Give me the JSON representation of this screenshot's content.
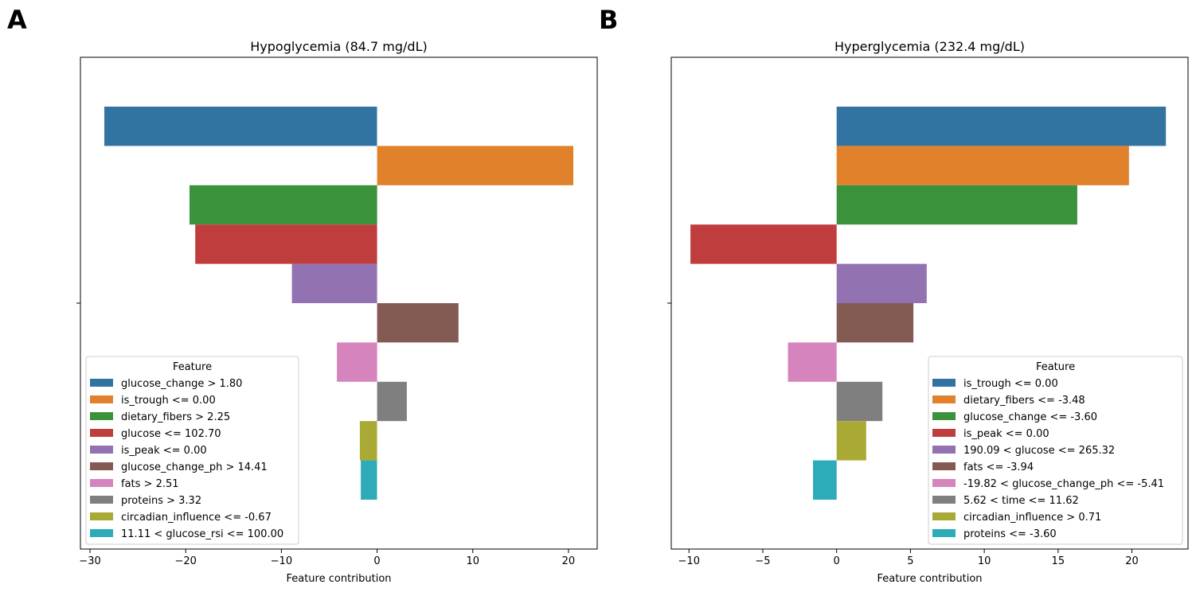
{
  "panels": [
    {
      "letter": "A"
    },
    {
      "letter": "B"
    }
  ],
  "chart_data": [
    {
      "type": "bar",
      "orientation": "horizontal",
      "title": "Hypoglycemia (84.7 mg/dL)",
      "xlabel": "Feature contribution",
      "ylabel": "",
      "xlim": [
        -31,
        23
      ],
      "xticks": [
        -30,
        -20,
        -10,
        0,
        10,
        20
      ],
      "grid": false,
      "legend_title": "Feature",
      "legend_position": "lower-left",
      "series": [
        {
          "name": "glucose_change > 1.80",
          "value": -28.5,
          "color": "#3274a1"
        },
        {
          "name": "is_trough <= 0.00",
          "value": 20.5,
          "color": "#e1812c"
        },
        {
          "name": "dietary_fibers > 2.25",
          "value": -19.6,
          "color": "#3a923a"
        },
        {
          "name": "glucose <= 102.70",
          "value": -19.0,
          "color": "#c03d3e"
        },
        {
          "name": "is_peak <= 0.00",
          "value": -8.9,
          "color": "#9372b2"
        },
        {
          "name": "glucose_change_ph > 14.41",
          "value": 8.5,
          "color": "#845b53"
        },
        {
          "name": "fats > 2.51",
          "value": -4.2,
          "color": "#d684bd"
        },
        {
          "name": "proteins > 3.32",
          "value": 3.1,
          "color": "#7f7f7f"
        },
        {
          "name": "circadian_influence <= -0.67",
          "value": -1.8,
          "color": "#a9aa35"
        },
        {
          "name": "11.11 < glucose_rsi <= 100.00",
          "value": -1.7,
          "color": "#2eabb8"
        }
      ]
    },
    {
      "type": "bar",
      "orientation": "horizontal",
      "title": "Hyperglycemia (232.4 mg/dL)",
      "xlabel": "Feature contribution",
      "ylabel": "",
      "xlim": [
        -11.2,
        23.8
      ],
      "xticks": [
        -10,
        -5,
        0,
        5,
        10,
        15,
        20
      ],
      "grid": false,
      "legend_title": "Feature",
      "legend_position": "lower-right",
      "series": [
        {
          "name": "is_trough <= 0.00",
          "value": 22.3,
          "color": "#3274a1"
        },
        {
          "name": "dietary_fibers <= -3.48",
          "value": 19.8,
          "color": "#e1812c"
        },
        {
          "name": "glucose_change <= -3.60",
          "value": 16.3,
          "color": "#3a923a"
        },
        {
          "name": "is_peak <= 0.00",
          "value": -9.9,
          "color": "#c03d3e"
        },
        {
          "name": "190.09 < glucose <= 265.32",
          "value": 6.1,
          "color": "#9372b2"
        },
        {
          "name": "fats <= -3.94",
          "value": 5.2,
          "color": "#845b53"
        },
        {
          "name": "-19.82 < glucose_change_ph <= -5.41",
          "value": -3.3,
          "color": "#d684bd"
        },
        {
          "name": "5.62 < time <= 11.62",
          "value": 3.1,
          "color": "#7f7f7f"
        },
        {
          "name": "circadian_influence > 0.71",
          "value": 2.0,
          "color": "#a9aa35"
        },
        {
          "name": "proteins <= -3.60",
          "value": -1.6,
          "color": "#2eabb8"
        }
      ]
    }
  ]
}
